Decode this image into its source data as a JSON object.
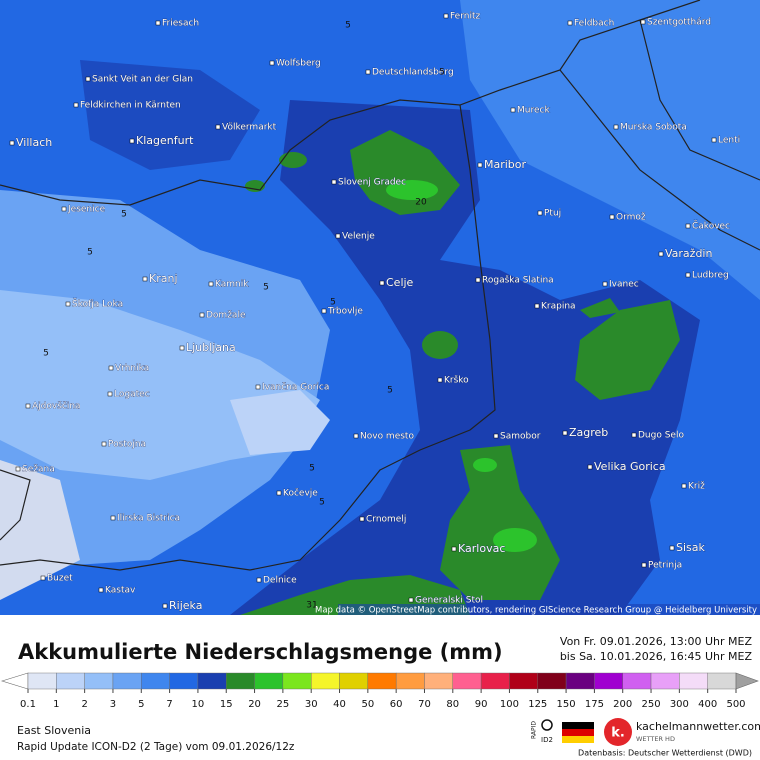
{
  "map": {
    "cities": [
      "Friesach",
      "Fernitz",
      "Feldbach",
      "Szentgotthárd",
      "Wolfsberg",
      "Deutschlandsberg",
      "Sankt Veit an der Glan",
      "Feldkirchen in Kärnten",
      "Mureck",
      "Völkermarkt",
      "Murska Sobota",
      "Villach",
      "Klagenfurt",
      "Lenti",
      "Maribor",
      "Slovenj Gradec",
      "Jesenice",
      "Ptuj",
      "Ormož",
      "Čakovec",
      "Velenje",
      "Varaždin",
      "Kranj",
      "Kamnik",
      "Celje",
      "Rogaška Slatina",
      "Ivanec",
      "Ludbreg",
      "Škofja Loka",
      "Krapina",
      "Trbovlje",
      "Domžale",
      "Ljubljana",
      "Vrhnika",
      "Krško",
      "Logatec",
      "Ivančna Gorica",
      "Ajdovščina",
      "Samobor",
      "Zagreb",
      "Dugo Selo",
      "Novo mesto",
      "Postojna",
      "Velika Gorica",
      "Sežana",
      "Kočevje",
      "Križ",
      "Crnomelj",
      "Ilirska Bistrica",
      "Karlovac",
      "Sisak",
      "Petrinja",
      "Buzet",
      "Delnice",
      "Kastav",
      "Generalski Stol",
      "Rijeka"
    ],
    "contour_labels": [
      "5",
      "5",
      "5",
      "5",
      "5",
      "5",
      "5",
      "5",
      "5",
      "5",
      "20",
      "31"
    ],
    "attribution": "Map data © OpenStreetMap contributors, rendering GIScience Research Group @ Heidelberg University"
  },
  "header": {
    "title": "Akkumulierte Niederschlagsmenge (mm)",
    "period_from": "Von Fr. 09.01.2026, 13:00 Uhr MEZ",
    "period_to": "bis Sa. 10.01.2026, 16:45 Uhr MEZ"
  },
  "legend": {
    "labels": [
      0.1,
      1,
      2,
      3,
      5,
      7,
      10,
      15,
      20,
      25,
      30,
      40,
      50,
      60,
      70,
      80,
      90,
      100,
      125,
      150,
      175,
      200,
      250,
      300,
      400,
      500
    ],
    "colors": [
      "#dfe6f5",
      "#bcd3f8",
      "#94bff8",
      "#6aa3f3",
      "#3f86ee",
      "#2268e3",
      "#1a3fb0",
      "#2a8a2a",
      "#2cc32c",
      "#7be61e",
      "#f5f52a",
      "#e0d000",
      "#ff7a00",
      "#ff9c40",
      "#ffb07a",
      "#ff6090",
      "#e8204a",
      "#b00018",
      "#80001a",
      "#6a0080",
      "#a000d0",
      "#d060f0",
      "#e8a0f8",
      "#f4dcf8",
      "#d8d8d8"
    ],
    "below_color": "#ffffff",
    "above_color": "#a0a0a0"
  },
  "footer": {
    "region": "East Slovenia",
    "model": "Rapid Update ICON-D2 (2 Tage) vom 09.01.2026/12z",
    "source": "Datenbasis: Deutscher Wetterdienst (DWD)",
    "brand": "kachelmannwetter.com",
    "brand_sub": "WETTER HD",
    "brand_letter": "k.",
    "rapid": "RAPID",
    "id2": "ID2"
  }
}
